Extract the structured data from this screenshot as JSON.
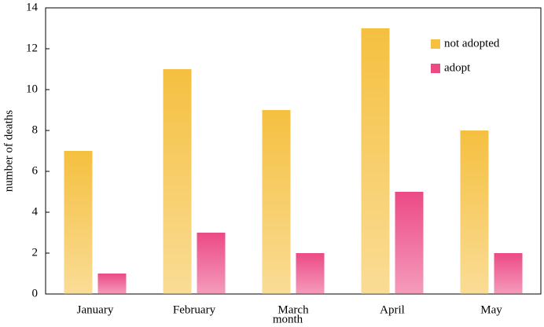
{
  "chart_data": {
    "type": "bar",
    "x_label": "month",
    "y_label": "number of deaths",
    "categories": [
      "January",
      "February",
      "March",
      "April",
      "May"
    ],
    "series": [
      {
        "name": "not adopted",
        "color": "#f5c040",
        "values": [
          7,
          11,
          9,
          13,
          8
        ]
      },
      {
        "name": "adopt",
        "color": "#ec4a85",
        "values": [
          1,
          3,
          2,
          5,
          2
        ]
      }
    ],
    "ylim": [
      0,
      14
    ],
    "yticks": [
      0,
      2,
      4,
      6,
      8,
      10,
      12,
      14
    ],
    "grid": false,
    "legend": "upper right"
  }
}
